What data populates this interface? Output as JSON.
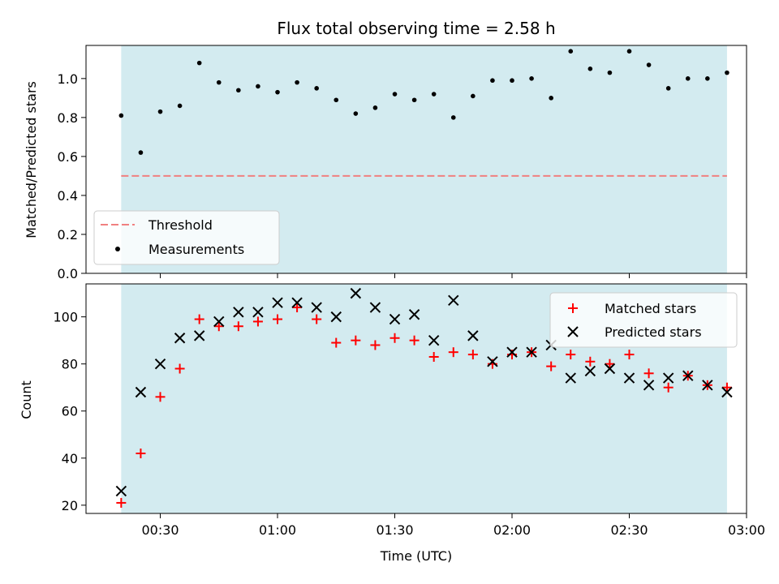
{
  "chart_data": [
    {
      "type": "scatter",
      "title": "Flux total observing time = 2.58 h",
      "xlabel": "",
      "ylabel": "Matched/Predicted stars",
      "ylim": [
        0,
        1.17
      ],
      "yticks": [
        "0.0",
        "0.2",
        "0.4",
        "0.6",
        "0.8",
        "1.0"
      ],
      "threshold": 0.5,
      "shaded_region": {
        "start": "00:20",
        "end": "02:55",
        "color": "#d3ebf0"
      },
      "series": [
        {
          "name": "Threshold",
          "kind": "dashed-line",
          "color": "#f08080"
        },
        {
          "name": "Measurements",
          "kind": "dot",
          "color": "#000000",
          "x": [
            "00:20",
            "00:25",
            "00:30",
            "00:35",
            "00:40",
            "00:45",
            "00:50",
            "00:55",
            "01:00",
            "01:05",
            "01:10",
            "01:15",
            "01:20",
            "01:25",
            "01:30",
            "01:35",
            "01:40",
            "01:45",
            "01:50",
            "01:55",
            "02:00",
            "02:05",
            "02:10",
            "02:15",
            "02:20",
            "02:25",
            "02:30",
            "02:35",
            "02:40",
            "02:45",
            "02:50",
            "02:55"
          ],
          "values": [
            0.81,
            0.62,
            0.83,
            0.86,
            1.08,
            0.98,
            0.94,
            0.96,
            0.93,
            0.98,
            0.95,
            0.89,
            0.82,
            0.85,
            0.92,
            0.89,
            0.92,
            0.8,
            0.91,
            0.99,
            0.99,
            1.0,
            0.9,
            1.14,
            1.05,
            1.03,
            1.14,
            1.07,
            0.95,
            1.0,
            1.0,
            1.03
          ]
        }
      ],
      "legend_position": "lower-left"
    },
    {
      "type": "scatter",
      "title": "",
      "xlabel": "Time (UTC)",
      "ylabel": "Count",
      "ylim": [
        16.5,
        114
      ],
      "yticks": [
        "20",
        "40",
        "60",
        "80",
        "100"
      ],
      "xlim": [
        "00:11",
        "03:00"
      ],
      "xticks": [
        "00:30",
        "01:00",
        "01:30",
        "02:00",
        "02:30",
        "03:00"
      ],
      "shaded_region": {
        "start": "00:20",
        "end": "02:55",
        "color": "#d3ebf0"
      },
      "series": [
        {
          "name": "Matched stars",
          "kind": "plus",
          "color": "#ff0000",
          "x": [
            "00:20",
            "00:25",
            "00:30",
            "00:35",
            "00:40",
            "00:45",
            "00:50",
            "00:55",
            "01:00",
            "01:05",
            "01:10",
            "01:15",
            "01:20",
            "01:25",
            "01:30",
            "01:35",
            "01:40",
            "01:45",
            "01:50",
            "01:55",
            "02:00",
            "02:05",
            "02:10",
            "02:15",
            "02:20",
            "02:25",
            "02:30",
            "02:35",
            "02:40",
            "02:45",
            "02:50",
            "02:55"
          ],
          "values": [
            21,
            42,
            66,
            78,
            99,
            96,
            96,
            98,
            99,
            104,
            99,
            89,
            90,
            88,
            91,
            90,
            83,
            85,
            84,
            80,
            84,
            85,
            79,
            84,
            81,
            80,
            84,
            76,
            70,
            75,
            71,
            70
          ]
        },
        {
          "name": "Predicted stars",
          "kind": "cross",
          "color": "#000000",
          "x": [
            "00:20",
            "00:25",
            "00:30",
            "00:35",
            "00:40",
            "00:45",
            "00:50",
            "00:55",
            "01:00",
            "01:05",
            "01:10",
            "01:15",
            "01:20",
            "01:25",
            "01:30",
            "01:35",
            "01:40",
            "01:45",
            "01:50",
            "01:55",
            "02:00",
            "02:05",
            "02:10",
            "02:15",
            "02:20",
            "02:25",
            "02:30",
            "02:35",
            "02:40",
            "02:45",
            "02:50",
            "02:55"
          ],
          "values": [
            26,
            68,
            80,
            91,
            92,
            98,
            102,
            102,
            106,
            106,
            104,
            100,
            110,
            104,
            99,
            101,
            90,
            107,
            92,
            81,
            85,
            85,
            88,
            74,
            77,
            78,
            74,
            71,
            74,
            75,
            71,
            68
          ]
        }
      ],
      "legend_position": "upper-right"
    }
  ]
}
